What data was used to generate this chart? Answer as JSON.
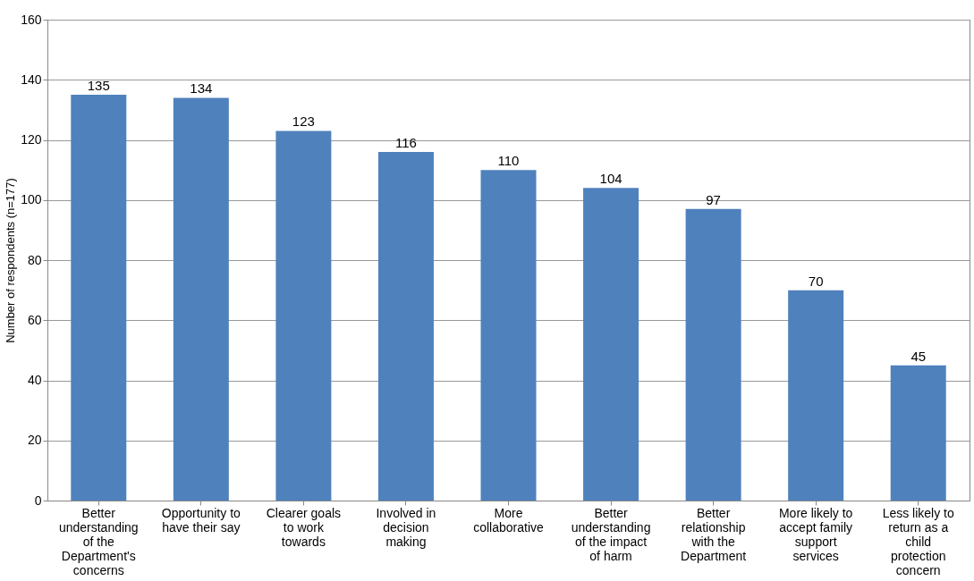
{
  "chart_data": {
    "type": "bar",
    "ylabel": "Number of respondents (n=177)",
    "categories": [
      "Better understanding of the Department's concerns",
      "Opportunity to have their say",
      "Clearer goals to work towards",
      "Involved in decision making",
      "More collaborative",
      "Better understanding of the impact of harm",
      "Better relationship with the Department",
      "More likely to accept family support services",
      "Less likely to return as a child protection concern"
    ],
    "values": [
      135,
      134,
      123,
      116,
      110,
      104,
      97,
      70,
      45
    ],
    "color": "#4f81bd",
    "ylim": [
      0,
      160
    ],
    "yticks": [
      0,
      20,
      40,
      60,
      80,
      100,
      120,
      140,
      160
    ],
    "grid": "y",
    "data_labels": true
  }
}
